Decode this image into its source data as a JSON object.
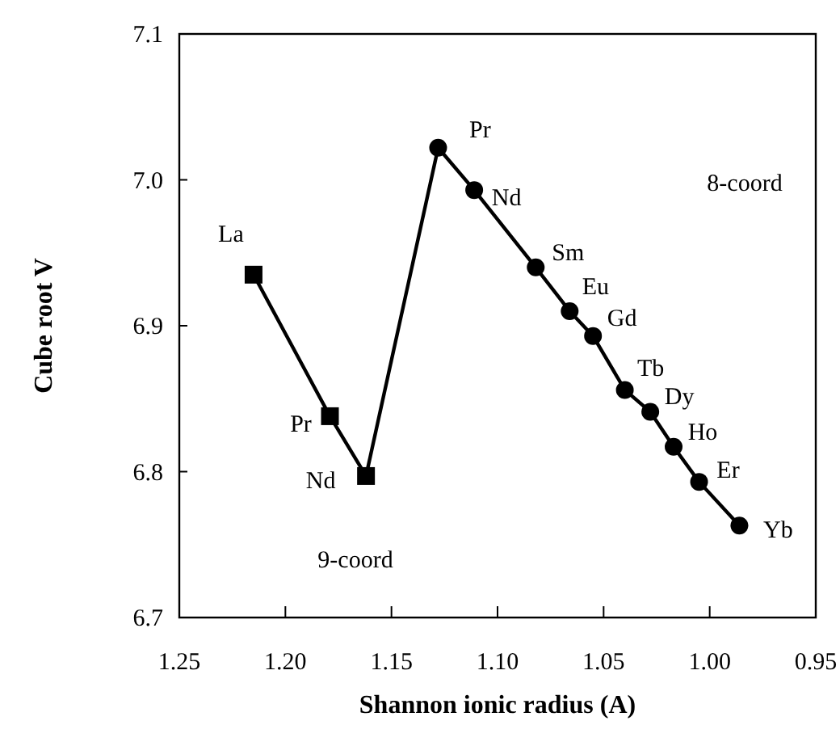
{
  "chart_data": {
    "type": "line",
    "xlabel": "Shannon ionic radius (A)",
    "ylabel": "Cube root V",
    "xlim": [
      1.25,
      0.95
    ],
    "ylim": [
      6.7,
      7.1
    ],
    "xticks": [
      {
        "value": 1.25,
        "label": "1.25"
      },
      {
        "value": 1.2,
        "label": "1.20"
      },
      {
        "value": 1.15,
        "label": "1.15"
      },
      {
        "value": 1.1,
        "label": "1.10"
      },
      {
        "value": 1.05,
        "label": "1.05"
      },
      {
        "value": 1,
        "label": "1.00"
      },
      {
        "value": 0.95,
        "label": "0.95"
      }
    ],
    "yticks": [
      {
        "value": 6.7,
        "label": "6.7"
      },
      {
        "value": 6.8,
        "label": "6.8"
      },
      {
        "value": 6.9,
        "label": "6.9"
      },
      {
        "value": 7,
        "label": "7.0"
      },
      {
        "value": 7.1,
        "label": "7.1"
      }
    ],
    "grid": false,
    "series": [
      {
        "color": "#000000",
        "marker": "square",
        "x": [
          1.215,
          1.179,
          1.162
        ],
        "values": [
          6.935,
          6.838,
          6.797
        ]
      },
      {
        "color": "#000000",
        "x": [
          1.162,
          1.128
        ],
        "values": [
          6.797,
          7.022
        ]
      },
      {
        "color": "#000000",
        "marker": "circle",
        "x": [
          1.128,
          1.111,
          1.082,
          1.066,
          1.055,
          1.04,
          1.028,
          1.017,
          1.005,
          0.986
        ],
        "values": [
          7.022,
          6.993,
          6.94,
          6.91,
          6.893,
          6.856,
          6.841,
          6.817,
          6.793,
          6.763
        ]
      }
    ],
    "annotations": [
      "8-coord",
      "9-coord",
      {
        "text": "La",
        "x": 1.215,
        "y": 6.935
      },
      {
        "text": "Pr",
        "x": 1.179,
        "y": 6.838
      },
      {
        "text": "Nd",
        "x": 1.162,
        "y": 6.797
      },
      {
        "text": "Pr",
        "x": 1.128,
        "y": 7.022
      },
      {
        "text": "Nd",
        "x": 1.111,
        "y": 6.993
      },
      {
        "text": "Sm",
        "x": 1.082,
        "y": 6.94
      },
      {
        "text": "Eu",
        "x": 1.066,
        "y": 6.91
      },
      {
        "text": "Gd",
        "x": 1.055,
        "y": 6.893
      },
      {
        "text": "Tb",
        "x": 1.04,
        "y": 6.856
      },
      {
        "text": "Dy",
        "x": 1.028,
        "y": 6.841
      },
      {
        "text": "Ho",
        "x": 1.017,
        "y": 6.817
      },
      {
        "text": "Er",
        "x": 1.005,
        "y": 6.793
      },
      {
        "text": "Yb",
        "x": 0.986,
        "y": 6.763
      }
    ]
  }
}
